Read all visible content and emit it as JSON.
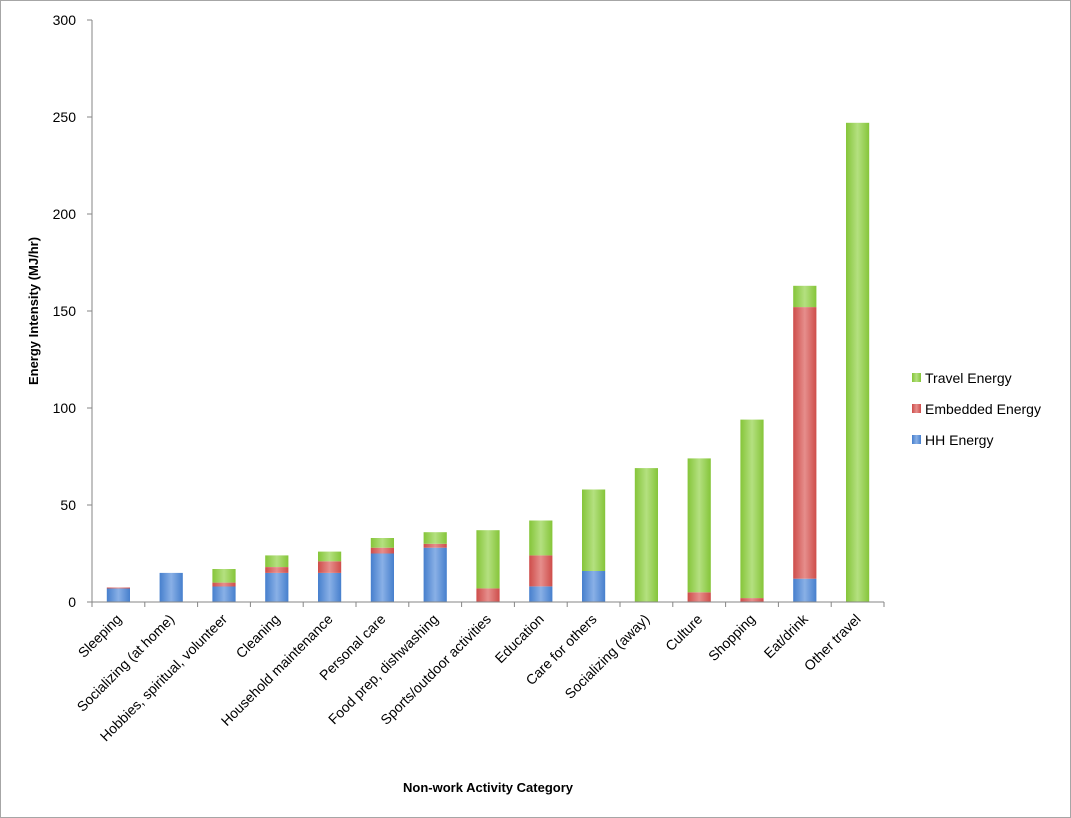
{
  "chart_data": {
    "type": "bar",
    "stacked": true,
    "title": "",
    "xlabel": "Non-work Activity Category",
    "ylabel": "Energy Intensity (MJ/hr)",
    "ylim": [
      0,
      300
    ],
    "yticks": [
      0,
      50,
      100,
      150,
      200,
      250,
      300
    ],
    "grid": false,
    "legend_position": "right",
    "categories": [
      "Sleeping",
      "Socializing (at home)",
      "Hobbies, spiritual, volunteer",
      "Cleaning",
      "Household maintenance",
      "Personal care",
      "Food prep, dishwashing",
      "Sports/outdoor activities",
      "Education",
      "Care for others",
      "Socializing (away)",
      "Culture",
      "Shopping",
      "Eat/drink",
      "Other travel"
    ],
    "series": [
      {
        "name": "HH Energy",
        "color": "#4a86d8",
        "values": [
          7,
          15,
          8,
          15,
          15,
          25,
          28,
          0,
          8,
          16,
          0,
          0,
          0,
          12,
          0
        ]
      },
      {
        "name": "Embedded Energy",
        "color": "#d9514e",
        "values": [
          0.5,
          0,
          2,
          3,
          6,
          3,
          2,
          7,
          16,
          0,
          0,
          5,
          2,
          140,
          0
        ]
      },
      {
        "name": "Travel Energy",
        "color": "#8ccf3c",
        "values": [
          0,
          0,
          7,
          6,
          5,
          5,
          6,
          30,
          18,
          42,
          69,
          69,
          92,
          11,
          247
        ]
      }
    ],
    "legend_order": [
      "Travel Energy",
      "Embedded Energy",
      "HH Energy"
    ]
  }
}
